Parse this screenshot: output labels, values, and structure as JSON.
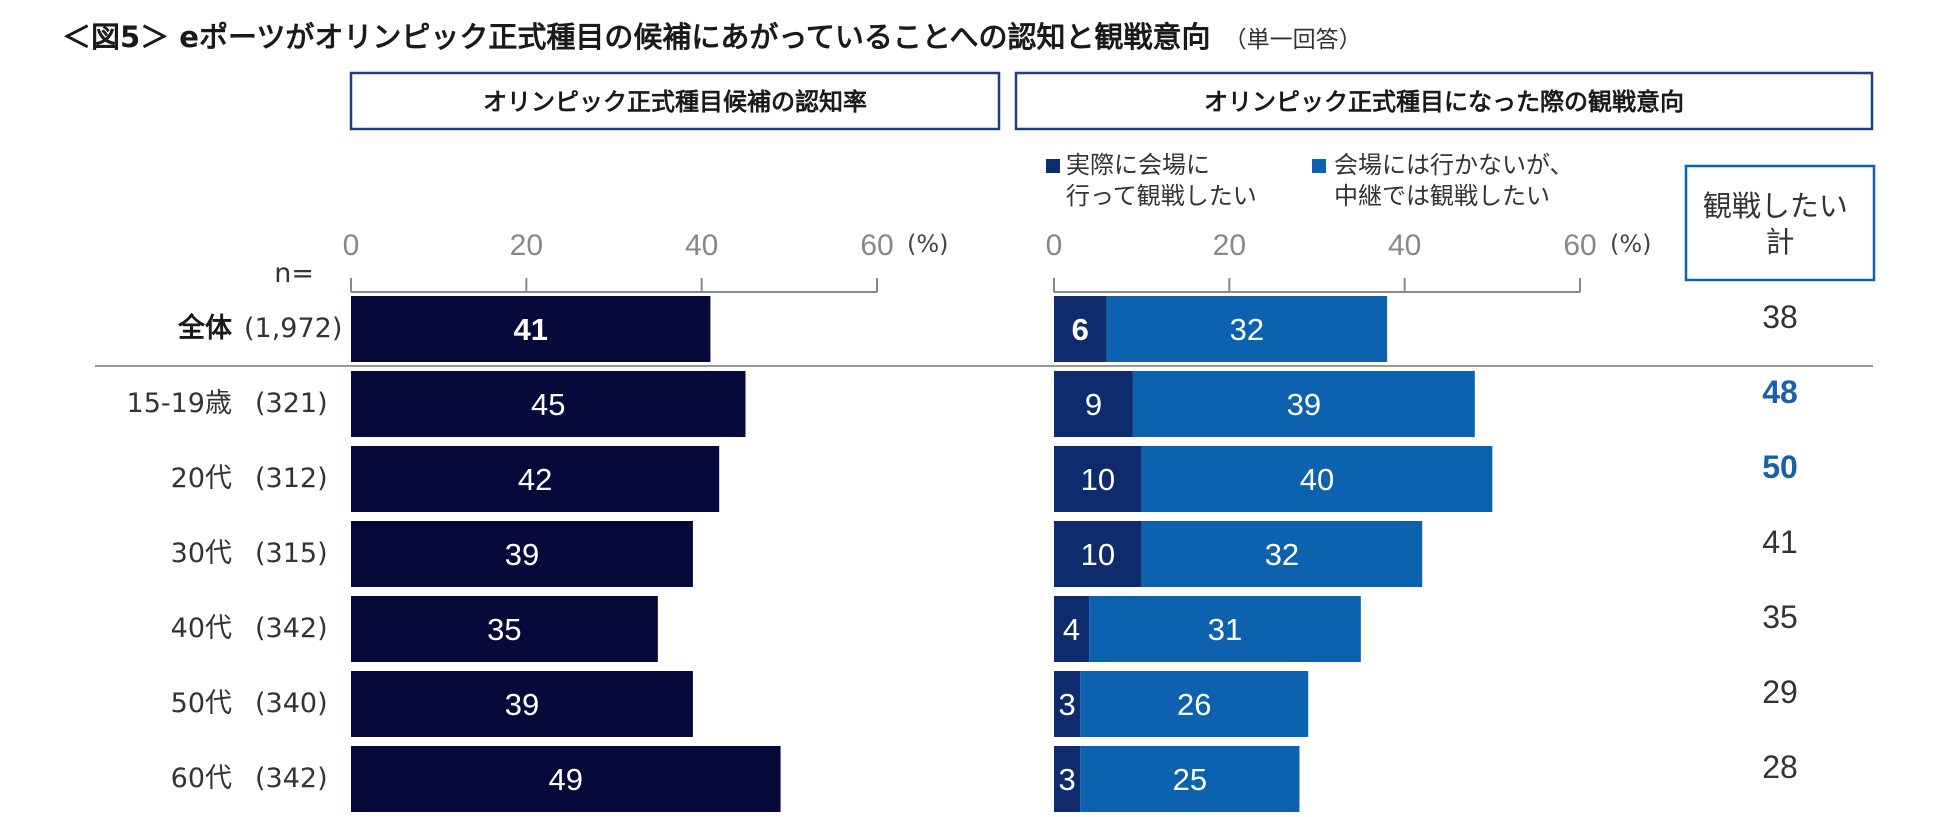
{
  "title": "＜図5＞ eポーツがオリンピック正式種目の候補にあがっていることへの認知と観戦意向",
  "title_note": "（単一回答）",
  "colors": {
    "navy": "#050a3a",
    "dark_blue": "#0e2b6e",
    "mid_blue": "#0d62b0",
    "highlight": "#1a5fa8",
    "frame": "#1f3f7f"
  },
  "n_label": "n=",
  "pct_unit": "(%)",
  "chart_data": [
    {
      "type": "bar",
      "orientation": "horizontal",
      "title": "オリンピック正式種目候補の認知率",
      "xlim": [
        0,
        60
      ],
      "ticks": [
        "0",
        "20",
        "40",
        "60"
      ],
      "categories": [
        "全体",
        "15-19歳",
        "20代",
        "30代",
        "40代",
        "50代",
        "60代"
      ],
      "n": [
        "(1,972)",
        "(321)",
        "(312)",
        "(315)",
        "(342)",
        "(340)",
        "(342)"
      ],
      "values": [
        41,
        45,
        42,
        39,
        35,
        39,
        49
      ]
    },
    {
      "type": "bar",
      "orientation": "horizontal",
      "stacked": true,
      "title": "オリンピック正式種目になった際の観戦意向",
      "xlim": [
        0,
        60
      ],
      "ticks": [
        "0",
        "20",
        "40",
        "60"
      ],
      "categories": [
        "全体",
        "15-19歳",
        "20代",
        "30代",
        "40代",
        "50代",
        "60代"
      ],
      "series": [
        {
          "name": "実際に会場に行って観戦したい",
          "legend_lines": [
            "実際に会場に",
            "行って観戦したい"
          ],
          "values": [
            6,
            9,
            10,
            10,
            4,
            3,
            3
          ]
        },
        {
          "name": "会場には行かないが、中継では観戦したい",
          "legend_lines": [
            "会場には行かないが、",
            "中継では観戦したい"
          ],
          "values": [
            32,
            39,
            40,
            32,
            31,
            26,
            25
          ]
        }
      ],
      "totals_header": [
        "観戦したい",
        "計"
      ],
      "totals": [
        38,
        48,
        50,
        41,
        35,
        29,
        28
      ],
      "highlighted_totals": [
        48,
        50
      ]
    }
  ]
}
